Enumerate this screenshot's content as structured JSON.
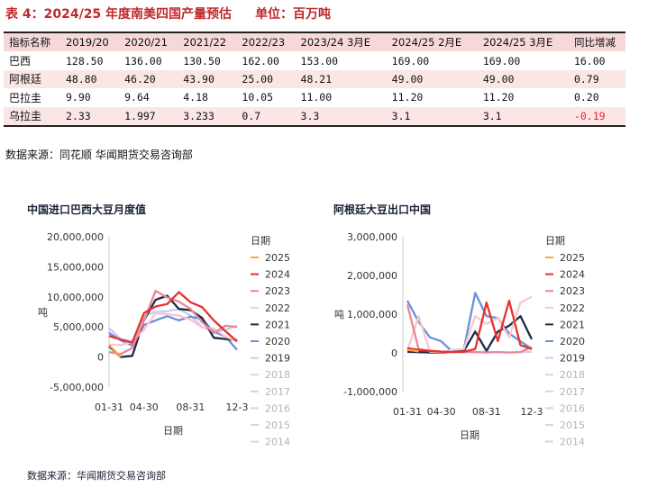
{
  "title": "表 4：2024/25 年度南美四国产量预估",
  "unit": "单位：百万吨",
  "table": {
    "headers": [
      "指标名称",
      "2019/20",
      "2020/21",
      "2021/22",
      "2022/23",
      "2023/24  3月E",
      "2024/25  2月E",
      "2024/25  3月E",
      "同比增减"
    ],
    "rows": [
      [
        "巴西",
        "128.50",
        "136.00",
        "130.50",
        "162.00",
        "153.00",
        "169.00",
        "169.00",
        "16.00"
      ],
      [
        "阿根廷",
        "48.80",
        "46.20",
        "43.90",
        "25.00",
        "48.21",
        "49.00",
        "49.00",
        "0.79"
      ],
      [
        "巴拉圭",
        "9.90",
        "9.64",
        "4.18",
        "10.05",
        "11.00",
        "11.20",
        "11.20",
        "0.20"
      ],
      [
        "乌拉圭",
        "2.33",
        "1.997",
        "3.233",
        "0.7",
        "3.3",
        "3.1",
        "3.1",
        "-0.19"
      ]
    ]
  },
  "source_top": "数据来源：同花顺  华闻期货交易咨询部",
  "source_bottom": "数据来源：华闻期货交易咨询部",
  "colors": {
    "title_red": "#c0282b",
    "header_bg": "#f6d8d8",
    "alt_row_bg": "#fbe6e6",
    "negative": "#e8212a"
  },
  "chart_data": [
    {
      "type": "line",
      "title": "中国进口巴西大豆月度值",
      "xlabel": "日期",
      "ylabel": "吨",
      "ylim": [
        -5000000,
        20000000
      ],
      "yticks": [
        "-5,000,000",
        "0",
        "5,000,000",
        "10,000,000",
        "15,000,000",
        "20,000,000"
      ],
      "xticks": [
        "01-31",
        "04-30",
        "08-31",
        "12-3"
      ],
      "legend_title": "日期",
      "legend_items": [
        "2025",
        "2024",
        "2023",
        "2022",
        "2021",
        "2020",
        "2019",
        "2018",
        "2017",
        "2016",
        "2015",
        "2014"
      ],
      "grid": false,
      "series": [
        {
          "name": "2025",
          "color": "#f5a64b",
          "values": [
            2000000,
            0
          ]
        },
        {
          "name": "2024",
          "color": "#e8312f",
          "values": [
            3500000,
            2900000,
            2400000,
            7300000,
            8400000,
            8800000,
            10800000,
            9100000,
            8300000,
            6100000,
            4300000,
            2600000
          ]
        },
        {
          "name": "2023",
          "color": "#e8879a",
          "values": [
            800000,
            500000,
            1500000,
            6000000,
            11000000,
            9900000,
            9200000,
            8000000,
            5800000,
            4000000,
            5200000,
            5000000
          ]
        },
        {
          "name": "2022",
          "color": "#f7c9cc",
          "values": [
            2100000,
            2000000,
            2500000,
            4500000,
            7300000,
            7100000,
            6900000,
            6200000,
            4900000,
            4800000,
            3400000,
            2600000
          ]
        },
        {
          "name": "2021",
          "color": "#1e2b45",
          "values": [
            1800000,
            0,
            200000,
            6100000,
            9500000,
            10200000,
            8000000,
            7800000,
            6500000,
            3200000,
            3000000,
            2800000
          ]
        },
        {
          "name": "2020",
          "color": "#6c8ede",
          "values": [
            4000000,
            2800000,
            1900000,
            5300000,
            6100000,
            6800000,
            6100000,
            6700000,
            6300000,
            4200000,
            3400000,
            1200000
          ]
        },
        {
          "name": "2019",
          "color": "#c5cff2",
          "values": [
            4800000,
            3000000,
            2600000,
            6900000,
            7500000,
            7600000,
            8000000,
            6900000,
            5000000,
            4200000,
            4500000,
            5200000
          ]
        }
      ]
    },
    {
      "type": "line",
      "title": "阿根廷大豆出口中国",
      "xlabel": "日期",
      "ylabel": "吨",
      "ylim": [
        -1000000,
        3000000
      ],
      "yticks": [
        "-1,000,000",
        "0",
        "1,000,000",
        "2,000,000",
        "3,000,000"
      ],
      "xticks": [
        "01-31",
        "04-30",
        "08-31",
        "12-3"
      ],
      "legend_title": "日期",
      "legend_items": [
        "2025",
        "2024",
        "2023",
        "2022",
        "2021",
        "2020",
        "2019",
        "2018",
        "2017",
        "2016",
        "2015",
        "2014"
      ],
      "grid": false,
      "series": [
        {
          "name": "2025",
          "color": "#f5a64b",
          "values": [
            80000,
            40000
          ]
        },
        {
          "name": "2024",
          "color": "#e8312f",
          "values": [
            120000,
            80000,
            50000,
            30000,
            20000,
            30000,
            100000,
            1300000,
            300000,
            1350000,
            200000,
            100000
          ]
        },
        {
          "name": "2023",
          "color": "#e8879a",
          "values": [
            1250000,
            100000,
            50000,
            30000,
            20000,
            30000,
            20000,
            10000,
            20000,
            10000,
            20000,
            150000
          ]
        },
        {
          "name": "2022",
          "color": "#f7c9cc",
          "values": [
            50000,
            950000,
            30000,
            20000,
            80000,
            100000,
            950000,
            750000,
            900000,
            400000,
            1300000,
            1450000
          ]
        },
        {
          "name": "2021",
          "color": "#1e2b45",
          "values": [
            30000,
            20000,
            10000,
            10000,
            30000,
            50000,
            550000,
            50000,
            550000,
            700000,
            950000,
            350000
          ]
        },
        {
          "name": "2020",
          "color": "#6c8ede",
          "values": [
            1350000,
            800000,
            400000,
            300000,
            20000,
            100000,
            1550000,
            950000,
            900000,
            500000,
            300000,
            100000
          ]
        },
        {
          "name": "2019",
          "color": "#c5cff2",
          "values": [
            20000,
            10000,
            10000,
            20000,
            30000,
            10000,
            20000,
            30000,
            20000,
            10000,
            20000,
            30000
          ]
        }
      ]
    }
  ]
}
